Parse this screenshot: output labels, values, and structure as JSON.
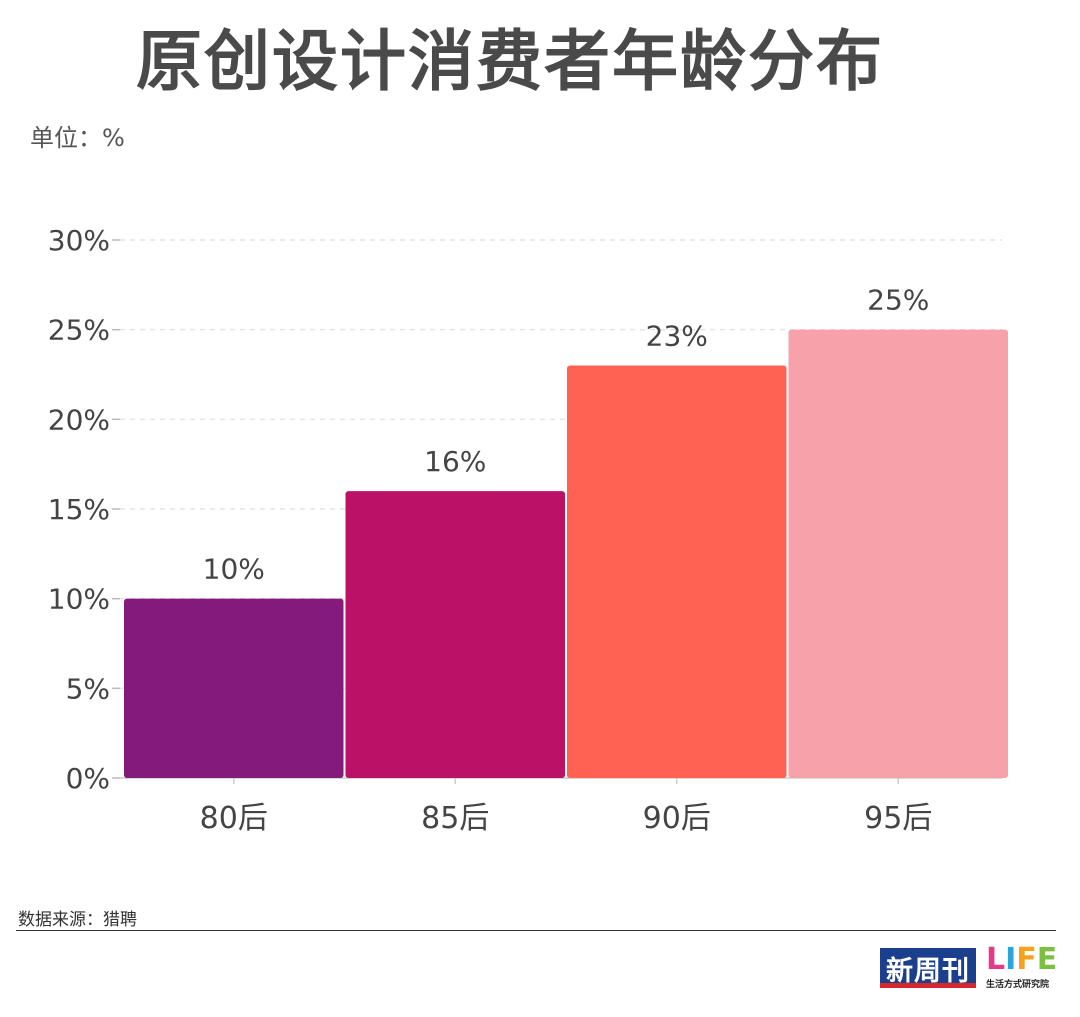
{
  "title": "原创设计消费者年龄分布",
  "unit_label": "单位：%",
  "source": "数据来源：猎聘",
  "logos": {
    "magazine": "新周刊",
    "brand_letters": [
      "L",
      "I",
      "F",
      "E"
    ],
    "brand_sub": "生活方式研究院"
  },
  "chart_data": {
    "type": "bar",
    "title": "原创设计消费者年龄分布",
    "xlabel": "",
    "ylabel": "单位：%",
    "categories": [
      "80后",
      "85后",
      "90后",
      "95后"
    ],
    "values": [
      10,
      16,
      23,
      25
    ],
    "value_labels": [
      "10%",
      "16%",
      "23%",
      "25%"
    ],
    "colors": [
      "#841a7c",
      "#bb1166",
      "#ff6252",
      "#f7a1aa"
    ],
    "ylim": [
      0,
      30
    ],
    "yticks": [
      0,
      5,
      10,
      15,
      20,
      25,
      30
    ],
    "ytick_labels": [
      "0%",
      "5%",
      "10%",
      "15%",
      "20%",
      "25%",
      "30%"
    ],
    "grid": true
  }
}
